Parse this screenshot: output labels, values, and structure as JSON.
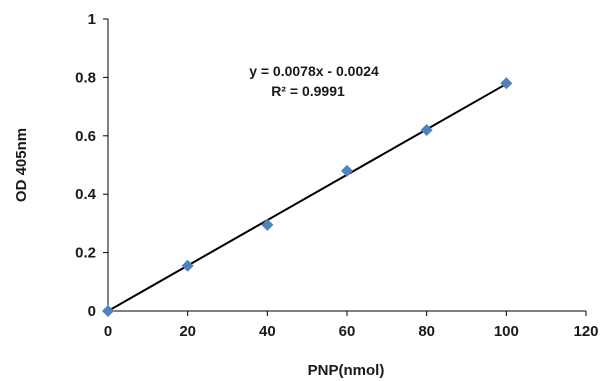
{
  "chart_data": {
    "type": "scatter",
    "xlabel": "PNP(nmol)",
    "ylabel": "OD 405nm",
    "xlim": [
      0,
      120
    ],
    "ylim": [
      0,
      1
    ],
    "xticks": [
      "0",
      "20",
      "40",
      "60",
      "80",
      "100",
      "120"
    ],
    "yticks": [
      "0",
      "0.2",
      "0.4",
      "0.6",
      "0.8",
      "1"
    ],
    "grid": false,
    "series": [
      {
        "marker": "diamond",
        "color": "#4f81bd",
        "points": [
          {
            "x": 0,
            "y": 0.0
          },
          {
            "x": 20,
            "y": 0.155
          },
          {
            "x": 40,
            "y": 0.295
          },
          {
            "x": 60,
            "y": 0.48
          },
          {
            "x": 80,
            "y": 0.62
          },
          {
            "x": 100,
            "y": 0.78
          }
        ]
      }
    ],
    "trendline": {
      "type": "linear",
      "slope": 0.0078,
      "intercept": -0.0024,
      "x_range": [
        0,
        100
      ],
      "color": "#000000"
    },
    "annotations": [
      "y = 0.0078x - 0.0024",
      "R² = 0.9991"
    ]
  }
}
